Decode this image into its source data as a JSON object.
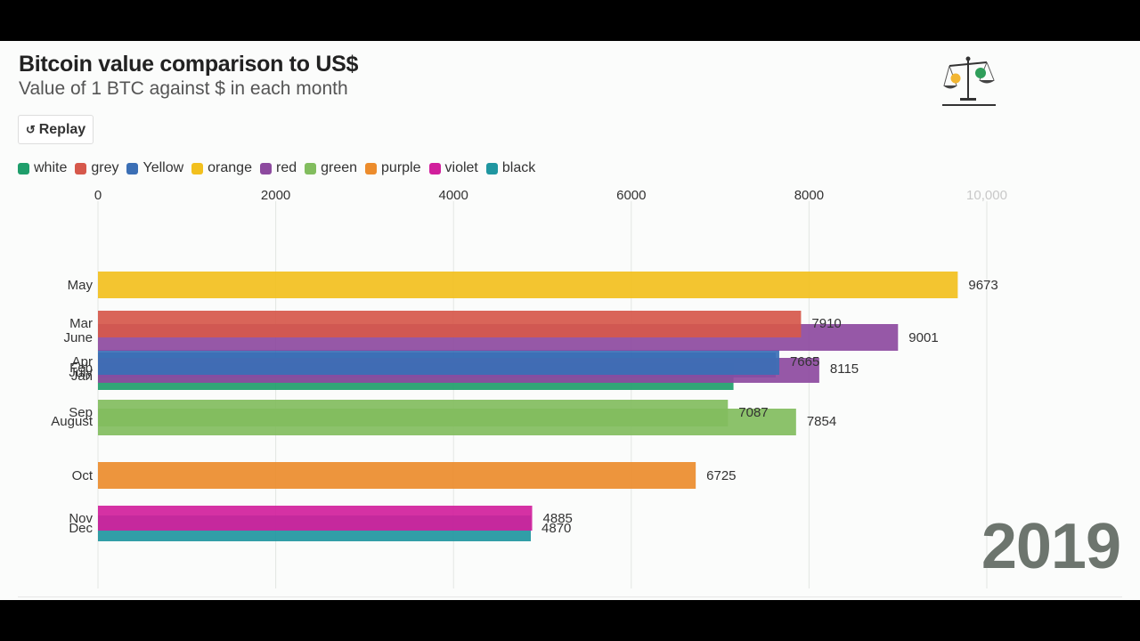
{
  "title": "Bitcoin value comparison to US$",
  "subtitle": "Value of 1 BTC against $ in each month",
  "replay_label": "Replay",
  "year_label": "2019",
  "colors": {
    "white": "#1f9e6b",
    "grey": "#d6584b",
    "Yellow": "#3b6fb5",
    "orange": "#f2c01e",
    "red": "#8d4a9f",
    "green": "#82bd5e",
    "purple": "#ec8c2c",
    "violet": "#d11f9c",
    "black": "#1f96a0"
  },
  "legend": [
    {
      "label": "white",
      "color": "#1f9e6b"
    },
    {
      "label": "grey",
      "color": "#d6584b"
    },
    {
      "label": "Yellow",
      "color": "#3b6fb5"
    },
    {
      "label": "orange",
      "color": "#f2c01e"
    },
    {
      "label": "red",
      "color": "#8d4a9f"
    },
    {
      "label": "green",
      "color": "#82bd5e"
    },
    {
      "label": "purple",
      "color": "#ec8c2c"
    },
    {
      "label": "violet",
      "color": "#d11f9c"
    },
    {
      "label": "black",
      "color": "#1f96a0"
    }
  ],
  "chart_data": {
    "type": "bar",
    "orientation": "horizontal",
    "title": "Bitcoin value comparison to US$",
    "subtitle": "Value of 1 BTC against $ in each month",
    "xlim": [
      0,
      10000
    ],
    "x_ticks": [
      "0",
      "2000",
      "4000",
      "6000",
      "8000",
      "10,000"
    ],
    "x_tick_values": [
      0,
      2000,
      4000,
      6000,
      8000,
      10000
    ],
    "grid": true,
    "legend_position": "top-left",
    "bars": [
      {
        "category": "May",
        "value": 9673,
        "value_label": "9673",
        "series": "orange"
      },
      {
        "category": "Mar",
        "value": 7910,
        "value_label": "7910",
        "series": "grey"
      },
      {
        "category": "June",
        "value": 9001,
        "value_label": "9001",
        "series": "red"
      },
      {
        "category": "Apr",
        "value": 7665,
        "value_label": "7665",
        "series": "Yellow"
      },
      {
        "category": "July",
        "value": 8115,
        "value_label": "8115",
        "series": "red"
      },
      {
        "category": "Feb",
        "value": 7625,
        "value_label": "",
        "series": "Yellow"
      },
      {
        "category": "Jan",
        "value": 7150,
        "value_label": "",
        "series": "white"
      },
      {
        "category": "Sep",
        "value": 7087,
        "value_label": "7087",
        "series": "green"
      },
      {
        "category": "August",
        "value": 7854,
        "value_label": "7854",
        "series": "green"
      },
      {
        "category": "Oct",
        "value": 6725,
        "value_label": "6725",
        "series": "purple"
      },
      {
        "category": "Nov",
        "value": 4885,
        "value_label": "4885",
        "series": "violet"
      },
      {
        "category": "Dec",
        "value": 4870,
        "value_label": "4870",
        "series": "black"
      }
    ]
  }
}
